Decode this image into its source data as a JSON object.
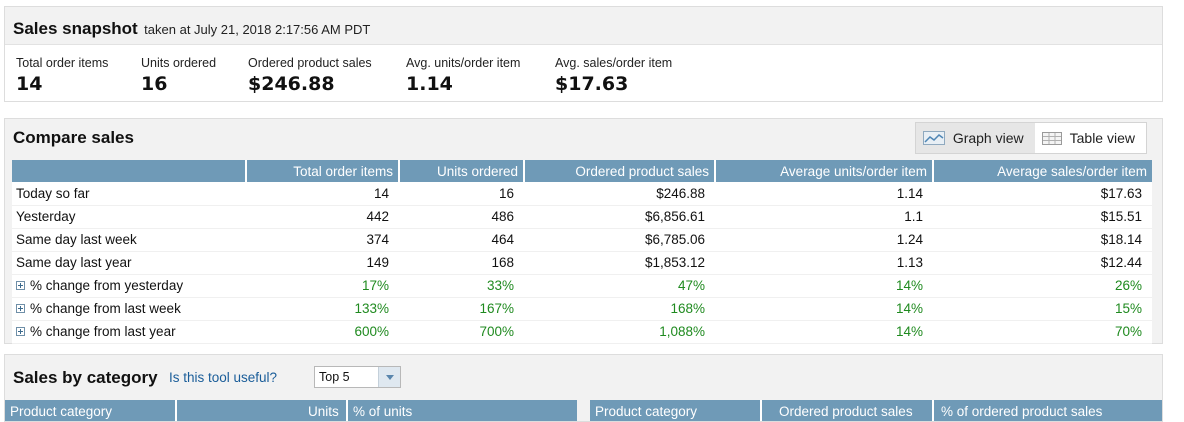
{
  "snapshot": {
    "title": "Sales snapshot",
    "taken": "taken at July 21, 2018 2:17:56 AM PDT",
    "metrics": [
      {
        "label": "Total order items",
        "value": "14"
      },
      {
        "label": "Units ordered",
        "value": "16"
      },
      {
        "label": "Ordered product sales",
        "value": "$246.88"
      },
      {
        "label": "Avg. units/order item",
        "value": "1.14"
      },
      {
        "label": "Avg. sales/order item",
        "value": "$17.63"
      }
    ]
  },
  "compare": {
    "title": "Compare sales",
    "graph_view_label": "Graph view",
    "table_view_label": "Table view",
    "columns": [
      "",
      "Total order items",
      "Units ordered",
      "Ordered product sales",
      "Average units/order item",
      "Average sales/order item"
    ],
    "rows": [
      {
        "label": "Today so far",
        "values": [
          "14",
          "16",
          "$246.88",
          "1.14",
          "$17.63"
        ]
      },
      {
        "label": "Yesterday",
        "values": [
          "442",
          "486",
          "$6,856.61",
          "1.1",
          "$15.51"
        ]
      },
      {
        "label": "Same day last week",
        "values": [
          "374",
          "464",
          "$6,785.06",
          "1.24",
          "$18.14"
        ]
      },
      {
        "label": "Same day last year",
        "values": [
          "149",
          "168",
          "$1,853.12",
          "1.13",
          "$12.44"
        ]
      }
    ],
    "pct_rows": [
      {
        "label": "% change from yesterday",
        "values": [
          "17%",
          "33%",
          "47%",
          "14%",
          "26%"
        ]
      },
      {
        "label": "% change from last week",
        "values": [
          "133%",
          "167%",
          "168%",
          "14%",
          "15%"
        ]
      },
      {
        "label": "% change from last year",
        "values": [
          "600%",
          "700%",
          "1,088%",
          "14%",
          "70%"
        ]
      }
    ],
    "colors": {
      "header_bg": "#6f9ab7",
      "positive": "#1f8a1f"
    }
  },
  "category": {
    "title": "Sales by category",
    "link": "Is this tool useful?",
    "select_value": "Top 5",
    "left_headers": [
      "Product category",
      "Units",
      "% of units"
    ],
    "right_headers": [
      "Product category",
      "Ordered product sales",
      "% of ordered product sales"
    ]
  }
}
